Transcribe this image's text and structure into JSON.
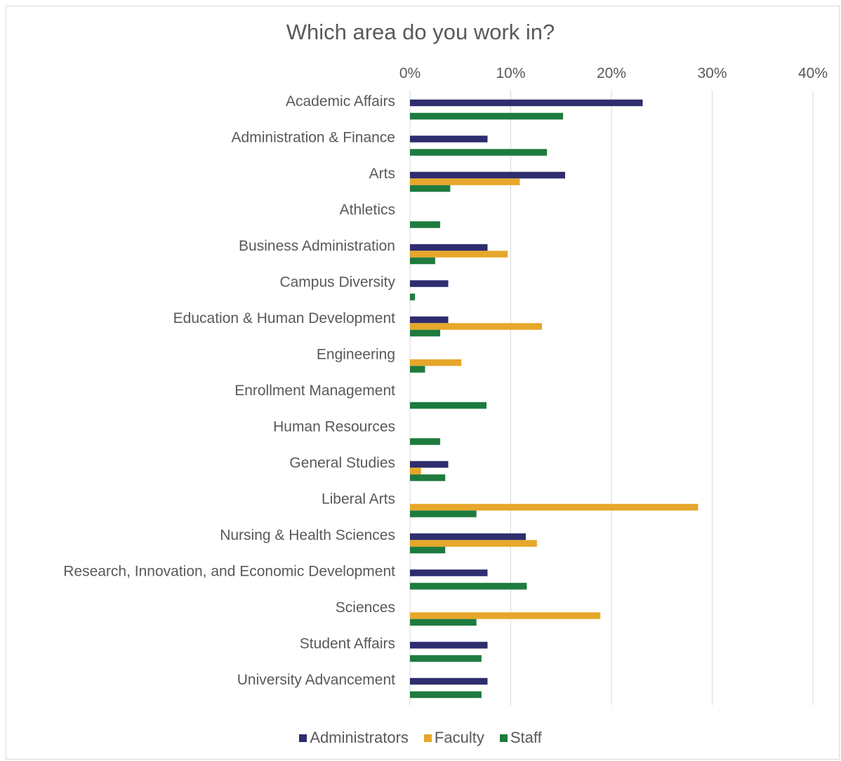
{
  "chart_data": {
    "type": "bar",
    "orientation": "horizontal",
    "title": "Which area do you work in?",
    "categories": [
      "Academic Affairs",
      "Administration & Finance",
      "Arts",
      "Athletics",
      "Business Administration",
      "Campus Diversity",
      "Education & Human Development",
      "Engineering",
      "Enrollment Management",
      "Human Resources",
      "General Studies",
      "Liberal Arts",
      "Nursing & Health Sciences",
      "Research, Innovation, and Economic Development",
      "Sciences",
      "Student Affairs",
      "University Advancement"
    ],
    "series": [
      {
        "name": "Administrators",
        "color": "#2e2d6e",
        "values": [
          23.1,
          7.7,
          15.4,
          0,
          7.7,
          3.8,
          3.8,
          0,
          0,
          0,
          3.8,
          0,
          11.5,
          7.7,
          0,
          7.7,
          7.7
        ]
      },
      {
        "name": "Faculty",
        "color": "#e6a72a",
        "values": [
          0,
          0,
          10.9,
          0,
          9.7,
          0,
          13.1,
          5.1,
          0,
          0,
          1.1,
          28.6,
          12.6,
          0,
          18.9,
          0,
          0
        ]
      },
      {
        "name": "Staff",
        "color": "#1e7b3e",
        "values": [
          15.2,
          13.6,
          4.0,
          3.0,
          2.5,
          0.5,
          3.0,
          1.5,
          7.6,
          3.0,
          3.5,
          6.6,
          3.5,
          11.6,
          6.6,
          7.1,
          7.1
        ]
      }
    ],
    "xlim": [
      0,
      40
    ],
    "xticks": [
      "0%",
      "10%",
      "20%",
      "30%",
      "40%"
    ],
    "x_axis_position": "top",
    "grid": true,
    "legend": "bottom"
  }
}
